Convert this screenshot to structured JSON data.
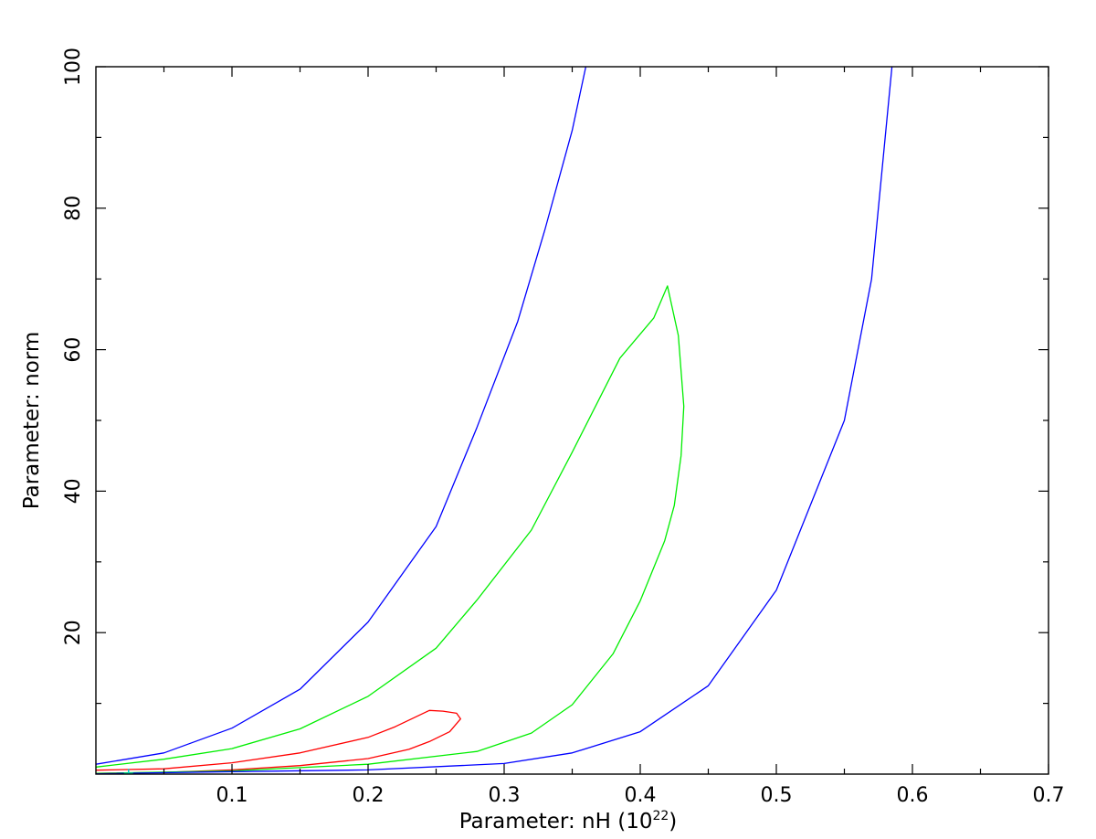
{
  "chart_data": {
    "type": "line",
    "title": "",
    "xlabel": "Parameter: nH (10",
    "xlabel_superscript": "22",
    "xlabel_suffix": ")",
    "ylabel": "Parameter: norm",
    "xlim": [
      0.0,
      0.7
    ],
    "ylim": [
      0.0,
      100.0
    ],
    "x_ticks": [
      0.1,
      0.2,
      0.3,
      0.4,
      0.5,
      0.6,
      0.7
    ],
    "x_tick_labels": [
      "0.1",
      "0.2",
      "0.3",
      "0.4",
      "0.5",
      "0.6",
      "0.7"
    ],
    "y_ticks": [
      20,
      40,
      60,
      80,
      100
    ],
    "y_tick_labels": [
      "20",
      "40",
      "60",
      "80",
      "100"
    ],
    "grid": false,
    "best_fit": {
      "x": 0.024,
      "y": 0.1,
      "color": "#00cccc"
    },
    "series": [
      {
        "color": "#ff0000",
        "points": [
          [
            0.0,
            0.55
          ],
          [
            0.05,
            0.75
          ],
          [
            0.1,
            1.6
          ],
          [
            0.15,
            3.0
          ],
          [
            0.2,
            5.2
          ],
          [
            0.22,
            6.7
          ],
          [
            0.245,
            9.0
          ],
          [
            0.255,
            8.9
          ],
          [
            0.265,
            8.6
          ],
          [
            0.268,
            7.8
          ],
          [
            0.26,
            6.0
          ],
          [
            0.245,
            4.6
          ],
          [
            0.23,
            3.5
          ],
          [
            0.2,
            2.2
          ],
          [
            0.15,
            1.2
          ],
          [
            0.1,
            0.6
          ],
          [
            0.05,
            0.25
          ],
          [
            0.0,
            0.1
          ]
        ]
      },
      {
        "color": "#00ee00",
        "points": [
          [
            0.0,
            1.0
          ],
          [
            0.05,
            2.1
          ],
          [
            0.1,
            3.6
          ],
          [
            0.15,
            6.4
          ],
          [
            0.2,
            11.0
          ],
          [
            0.25,
            17.8
          ],
          [
            0.28,
            24.6
          ],
          [
            0.32,
            34.5
          ],
          [
            0.35,
            45.5
          ],
          [
            0.385,
            58.8
          ],
          [
            0.41,
            64.5
          ],
          [
            0.42,
            69.0
          ],
          [
            0.428,
            62.0
          ],
          [
            0.432,
            52.0
          ],
          [
            0.43,
            45.0
          ],
          [
            0.425,
            38.0
          ],
          [
            0.418,
            33.0
          ],
          [
            0.4,
            24.5
          ],
          [
            0.38,
            17.0
          ],
          [
            0.35,
            9.8
          ],
          [
            0.32,
            5.8
          ],
          [
            0.28,
            3.2
          ],
          [
            0.2,
            1.4
          ],
          [
            0.1,
            0.45
          ],
          [
            0.0,
            0.1
          ]
        ]
      },
      {
        "color": "#0000ff",
        "points": [
          [
            0.0,
            1.4
          ],
          [
            0.05,
            3.0
          ],
          [
            0.1,
            6.5
          ],
          [
            0.15,
            12.0
          ],
          [
            0.2,
            21.5
          ],
          [
            0.25,
            35.0
          ],
          [
            0.28,
            49.0
          ],
          [
            0.31,
            64.0
          ],
          [
            0.33,
            77.0
          ],
          [
            0.35,
            91.0
          ],
          [
            0.36,
            100.0
          ]
        ]
      },
      {
        "color": "#0000ff",
        "points": [
          [
            0.0,
            0.05
          ],
          [
            0.1,
            0.35
          ],
          [
            0.2,
            0.6
          ],
          [
            0.3,
            1.5
          ],
          [
            0.35,
            3.0
          ],
          [
            0.4,
            6.0
          ],
          [
            0.45,
            12.5
          ],
          [
            0.5,
            26.0
          ],
          [
            0.55,
            50.0
          ],
          [
            0.57,
            70.0
          ],
          [
            0.585,
            100.0
          ]
        ]
      }
    ]
  }
}
